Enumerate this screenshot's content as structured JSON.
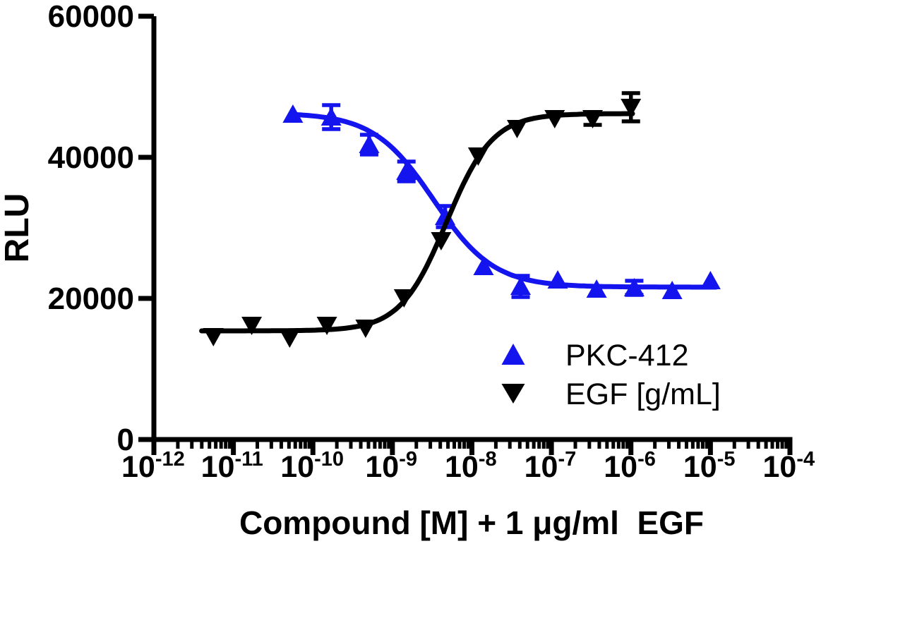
{
  "figure": {
    "background": "#ffffff",
    "axis_color": "#000000",
    "y_axis": {
      "title": "RLU",
      "tick_values": [
        0,
        20000,
        40000,
        60000
      ],
      "tick_labels": [
        "0",
        "20000",
        "40000",
        "60000"
      ],
      "range": [
        0,
        60000
      ]
    },
    "x_axis": {
      "title": "Compound [M] + 1 μg/ml  EGF",
      "scale": "log",
      "base_label": "10",
      "decade_exponents": [
        -12,
        -11,
        -10,
        -9,
        -8,
        -7,
        -6,
        -5,
        -4
      ]
    },
    "legend": [
      {
        "label": "PKC-412",
        "marker": "triangle-up",
        "color": "#1414ef"
      },
      {
        "label": "EGF [g/mL]",
        "marker": "triangle-down",
        "color": "#000000"
      }
    ]
  },
  "chart_data": {
    "type": "scatter",
    "title": "",
    "xlabel": "Compound [M] + 1 μg/ml  EGF",
    "ylabel": "RLU",
    "x_scale": "log",
    "xlim_log10": [
      -12,
      -4
    ],
    "ylim": [
      0,
      60000
    ],
    "y_ticks": [
      0,
      20000,
      40000,
      60000
    ],
    "grid": false,
    "legend_position": "inside-lower-right",
    "series": [
      {
        "name": "PKC-412",
        "marker": "triangle-up",
        "color": "#1414ef",
        "x": [
          5.6e-11,
          1.7e-10,
          5.1e-10,
          1.5e-09,
          4.6e-09,
          1.4e-08,
          4.1e-08,
          1.2e-07,
          3.7e-07,
          1.1e-06,
          3.3e-06,
          1e-05
        ],
        "y": [
          46100,
          45700,
          41800,
          38000,
          31600,
          24500,
          21700,
          22600,
          21300,
          21500,
          21100,
          22500
        ],
        "y_error": [
          0,
          1700,
          1400,
          1400,
          1500,
          0,
          1500,
          0,
          0,
          1000,
          0,
          0
        ],
        "fit": {
          "model": "four-parameter-logistic",
          "bottom": 21600,
          "top": 46300,
          "log10_ec50": -8.48,
          "hill": -1.15,
          "x_range_log10": [
            -10.23,
            -4.93
          ]
        }
      },
      {
        "name": "EGF [g/mL]",
        "marker": "triangle-down",
        "color": "#000000",
        "x": [
          5.6e-12,
          1.7e-11,
          5.1e-11,
          1.5e-10,
          4.6e-10,
          1.4e-09,
          4.1e-09,
          1.2e-08,
          3.7e-08,
          1.1e-07,
          3.3e-07,
          1e-06
        ],
        "y": [
          14600,
          16200,
          14400,
          16200,
          15800,
          20100,
          28200,
          40200,
          44100,
          45500,
          45500,
          47100
        ],
        "y_error": [
          0,
          0,
          0,
          0,
          0,
          0,
          0,
          0,
          0,
          0,
          900,
          2000
        ],
        "fit": {
          "model": "four-parameter-logistic",
          "bottom": 15400,
          "top": 46200,
          "log10_ec50": -8.32,
          "hill": 1.5,
          "x_range_log10": [
            -11.4,
            -5.98
          ]
        }
      }
    ]
  }
}
